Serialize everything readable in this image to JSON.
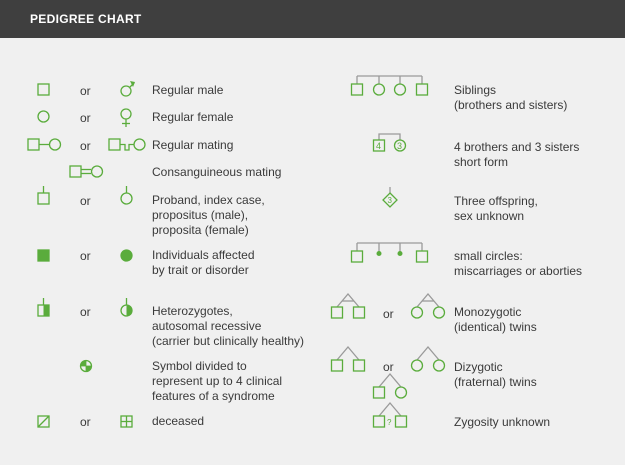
{
  "header": {
    "title": "PEDIGREE CHART"
  },
  "colors": {
    "accent": "#5aac3c",
    "header_bg": "#3f3f3f",
    "text": "#3a3a3a",
    "background": "#f0f0f0"
  },
  "connector": "or",
  "left_legend": [
    {
      "label": "Regular male"
    },
    {
      "label": "Regular female"
    },
    {
      "label": "Regular mating"
    },
    {
      "label": "Consanguineous mating"
    },
    {
      "label": "Proband, index case,\npropositus (male),\nproposita (female)"
    },
    {
      "label": "Individuals affected\nby trait or disorder"
    },
    {
      "label": "Heterozygotes,\nautosomal recessive\n(carrier but clinically healthy)"
    },
    {
      "label": "Symbol divided to\nrepresent up to 4 clinical\nfeatures of a syndrome"
    },
    {
      "label": "deceased"
    }
  ],
  "right_legend": [
    {
      "label": "Siblings\n(brothers and sisters)"
    },
    {
      "label": "4 brothers and 3 sisters\nshort form"
    },
    {
      "label": "Three offspring,\nsex unknown"
    },
    {
      "label": "small circles:\nmiscarriages or aborties"
    },
    {
      "label": "Monozygotic\n(identical) twins"
    },
    {
      "label": "Dizygotic\n(fraternal) twins"
    },
    {
      "label": "Zygosity unknown"
    }
  ],
  "symbol_labels": {
    "brothers_count": "4",
    "sisters_count": "3",
    "offspring_count": "3",
    "unknown_mark": "?"
  }
}
